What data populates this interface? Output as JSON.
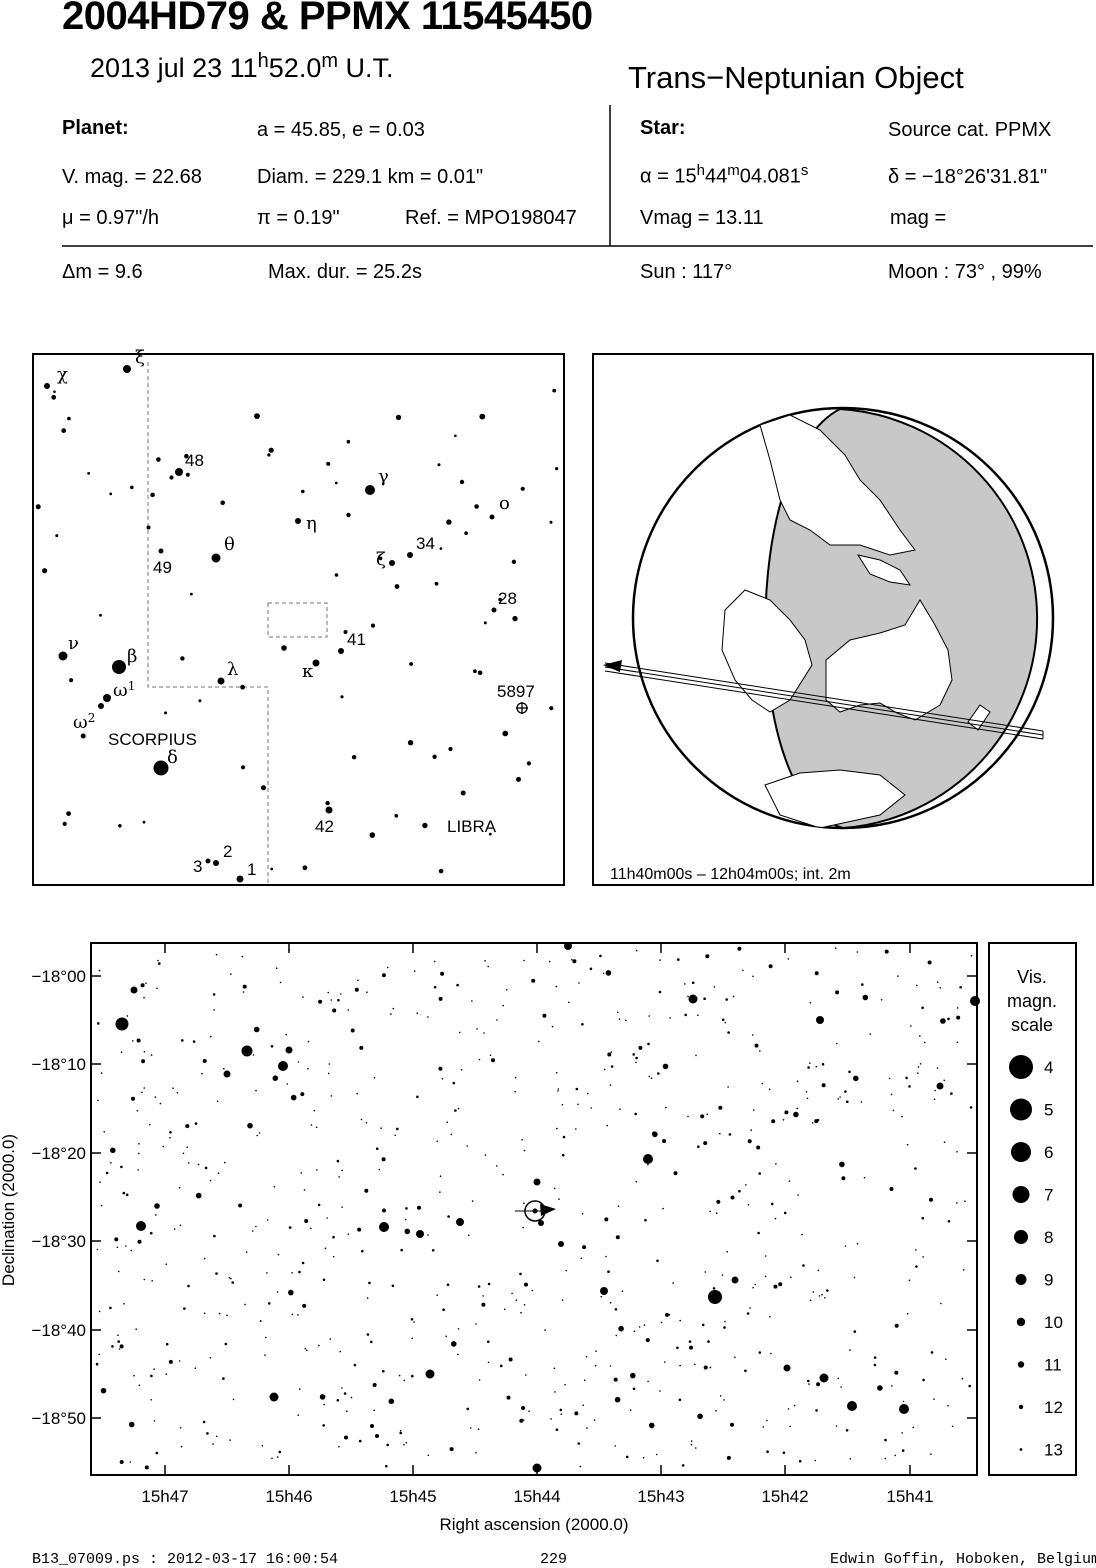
{
  "header": {
    "title": "2004HD79  &  PPMX 11545450",
    "date": "2013 jul 23  11",
    "date_h": "h",
    "date_min": "52.0",
    "date_m": "m",
    "date_ut": " U.T.",
    "object_type": "Trans−Neptunian Object"
  },
  "planet": {
    "heading": "Planet:",
    "orbit": "a = 45.85, e = 0.03",
    "vmag": "V. mag. = 22.68",
    "diam": "Diam. = 229.1 km = 0.01\"",
    "mu": "μ =  0.97\"/h",
    "pi": "π =  0.19\"",
    "ref": "Ref. = MPO198047"
  },
  "star": {
    "heading": "Star:",
    "source": "Source cat.  PPMX",
    "alpha_prefix": "α = 15",
    "alpha_h": "h",
    "alpha_min": "44",
    "alpha_m": "m",
    "alpha_sec": "04.081",
    "alpha_s": "s",
    "delta": "δ = −18°26'31.81\"",
    "vmag": "Vmag = 13.11",
    "mag": " mag = "
  },
  "event": {
    "dm": "Δm = 9.6",
    "maxdur": "Max. dur. = 25.2s",
    "sun": "Sun : 117°",
    "moon": "Moon :  73° , 99%"
  },
  "finder": {
    "stars": [
      {
        "id": "chi",
        "label": "χ"
      },
      {
        "id": "xi",
        "label": "ξ"
      },
      {
        "id": "s48",
        "label": "48"
      },
      {
        "id": "gamma",
        "label": "γ"
      },
      {
        "id": "eta",
        "label": "η"
      },
      {
        "id": "omicron",
        "label": "o"
      },
      {
        "id": "theta",
        "label": "θ"
      },
      {
        "id": "s49",
        "label": "49"
      },
      {
        "id": "zeta",
        "label": "ζ"
      },
      {
        "id": "s34",
        "label": "34"
      },
      {
        "id": "s28",
        "label": "28"
      },
      {
        "id": "s41",
        "label": "41"
      },
      {
        "id": "nu",
        "label": "ν"
      },
      {
        "id": "beta",
        "label": "β"
      },
      {
        "id": "lambda",
        "label": "λ"
      },
      {
        "id": "kappa",
        "label": "κ"
      },
      {
        "id": "omega1",
        "label": "ω",
        "sup": "1"
      },
      {
        "id": "omega2",
        "label": "ω",
        "sup": "2"
      },
      {
        "id": "delta",
        "label": "δ"
      },
      {
        "id": "s42",
        "label": "42"
      },
      {
        "id": "s1",
        "label": "1"
      },
      {
        "id": "s2",
        "label": "2"
      },
      {
        "id": "s3",
        "label": "3"
      }
    ],
    "cluster_label": "5897",
    "constellation_scorpius": "SCORPIUS",
    "constellation_libra": "LIBRA"
  },
  "globe": {
    "caption": "11h40m00s – 12h04m00s; int.  2m"
  },
  "starchart": {
    "dec_ticks": [
      "−18°00",
      "−18°10",
      "−18°20",
      "−18°30",
      "−18°40",
      "−18°50"
    ],
    "ra_ticks": [
      "15h47",
      "15h46",
      "15h45",
      "15h44",
      "15h43",
      "15h42",
      "15h41"
    ],
    "xlabel": "Right ascension (2000.0)",
    "ylabel": "Declination (2000.0)"
  },
  "legend": {
    "title1": "Vis.",
    "title2": "magn.",
    "title3": "scale",
    "mags": [
      "4",
      "5",
      "6",
      "7",
      "8",
      "9",
      "10",
      "11",
      "12",
      "13"
    ]
  },
  "footer": {
    "left": "B13_07009.ps : 2012-03-17 16:00:54",
    "center": "229",
    "right": "Edwin Goffin, Hoboken, Belgium"
  }
}
